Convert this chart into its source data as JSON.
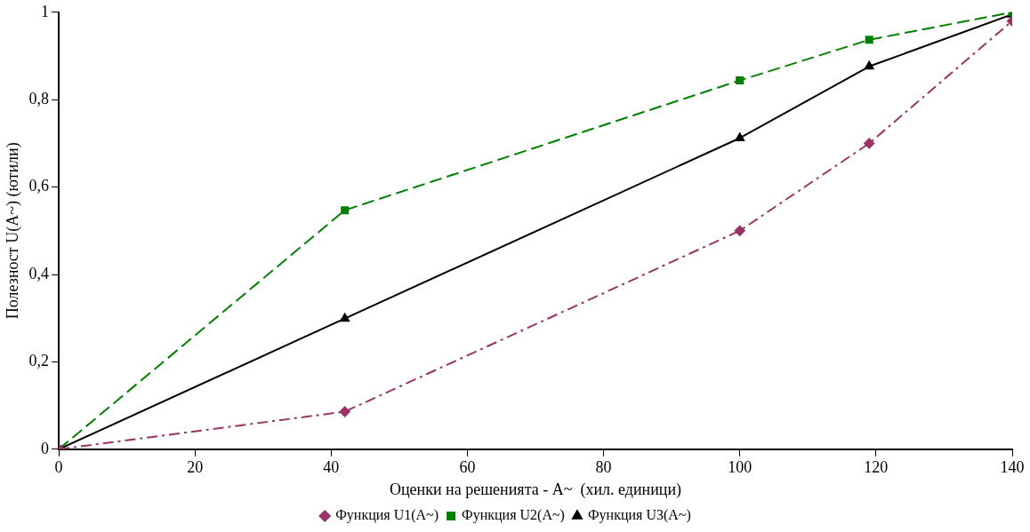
{
  "chart_data": {
    "type": "line",
    "xlabel": "Оценки на решенията - А~  (хил. единици)",
    "ylabel": "Полезност U(A~) (ютили)",
    "xlim": [
      0,
      140
    ],
    "xticks": [
      0,
      20,
      40,
      60,
      80,
      100,
      120,
      140
    ],
    "ylim": [
      0,
      1
    ],
    "yticks": [
      0,
      {
        "value": 0.2,
        "label": "0,2"
      },
      {
        "value": 0.4,
        "label": "0,4"
      },
      {
        "value": 0.6,
        "label": "0,6"
      },
      {
        "value": 0.8,
        "label": "0,8"
      },
      1
    ],
    "grid": false,
    "legend": "bottom",
    "series": [
      {
        "name": "Функция U1(A~)",
        "color": "#993366",
        "x": [
          0,
          42,
          100,
          119,
          140
        ],
        "values": [
          0,
          0.086,
          0.5,
          0.7,
          0.98
        ],
        "marker": "diamond",
        "line_style": "dashdot"
      },
      {
        "name": "Функция U2(A~)",
        "color": "#008000",
        "x": [
          0,
          42,
          100,
          119,
          140
        ],
        "values": [
          0,
          0.547,
          0.844,
          0.937,
          1
        ],
        "marker": "square",
        "line_style": "dashed"
      },
      {
        "name": "Функция U3(A~)",
        "color": "#000000",
        "x": [
          0,
          42,
          100,
          119,
          140
        ],
        "values": [
          0,
          0.299,
          0.712,
          0.876,
          0.995
        ],
        "marker": "triangle",
        "line_style": "solid"
      }
    ]
  }
}
